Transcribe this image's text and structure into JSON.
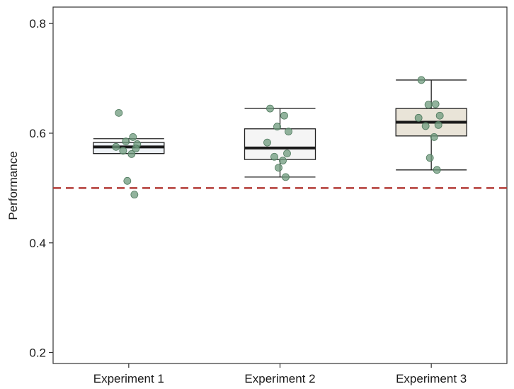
{
  "chart_data": {
    "type": "boxplot",
    "ylabel": "Performance",
    "xlabel": "",
    "ylim": [
      0.18,
      0.83
    ],
    "yticks": [
      "0.2",
      "0.4",
      "0.6",
      "0.8"
    ],
    "categories": [
      "Experiment 1",
      "Experiment 2",
      "Experiment 3"
    ],
    "boxes": [
      {
        "name": "Experiment 1",
        "min": 0.563,
        "q1": 0.563,
        "median": 0.575,
        "q3": 0.583,
        "max": 0.59,
        "fill": "#eef2f6",
        "points": [
          0.637,
          0.593,
          0.585,
          0.58,
          0.575,
          0.572,
          0.568,
          0.562,
          0.513,
          0.488
        ]
      },
      {
        "name": "Experiment 2",
        "min": 0.52,
        "q1": 0.552,
        "median": 0.573,
        "q3": 0.608,
        "max": 0.645,
        "fill": "#f5f5f5",
        "points": [
          0.645,
          0.632,
          0.612,
          0.603,
          0.583,
          0.563,
          0.557,
          0.55,
          0.537,
          0.52
        ]
      },
      {
        "name": "Experiment 3",
        "min": 0.533,
        "q1": 0.595,
        "median": 0.62,
        "q3": 0.645,
        "max": 0.697,
        "fill": "#e9e4d8",
        "points": [
          0.697,
          0.653,
          0.652,
          0.632,
          0.628,
          0.615,
          0.613,
          0.593,
          0.555,
          0.533
        ]
      }
    ],
    "reference_line": {
      "y": 0.5,
      "style": "dashed",
      "color": "#b23a36"
    },
    "point_color": "#6e9a7c",
    "grid": false
  }
}
